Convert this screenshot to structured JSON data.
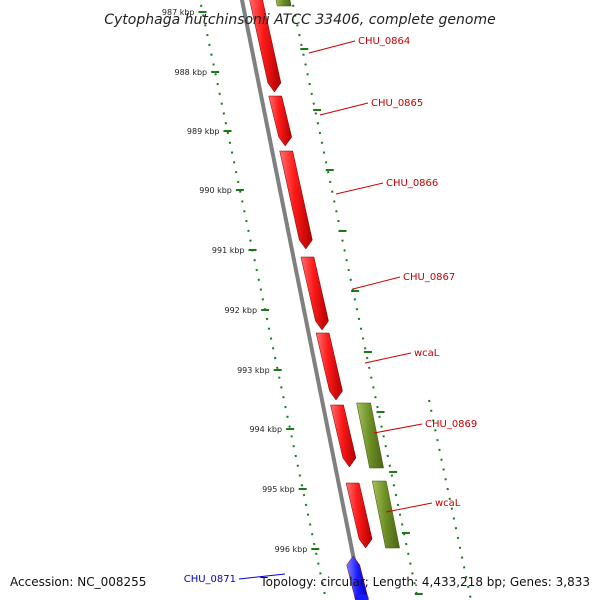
{
  "title": "Cytophaga hutchinsonii ATCC 33406, complete genome",
  "footer": {
    "accession": "Accession: NC_008255",
    "topology": "Topology: circular; Length: 4,433,218 bp; Genes: 3,833"
  },
  "ticks": [
    {
      "label": "987 kbp",
      "faded": true
    },
    {
      "label": "988 kbp"
    },
    {
      "label": "989 kbp"
    },
    {
      "label": "990 kbp"
    },
    {
      "label": "991 kbp"
    },
    {
      "label": "992 kbp"
    },
    {
      "label": "993 kbp"
    },
    {
      "label": "994 kbp"
    },
    {
      "label": "995 kbp"
    },
    {
      "label": "996 kbp"
    }
  ],
  "genes": [
    {
      "name": "CHU_0864",
      "strand": "reverse",
      "category": "cds",
      "color": "#e00000"
    },
    {
      "name": "CHU_0865",
      "strand": "reverse",
      "category": "cds",
      "color": "#e00000"
    },
    {
      "name": "CHU_0866",
      "strand": "reverse",
      "category": "cds",
      "color": "#e00000"
    },
    {
      "name": "CHU_0867",
      "strand": "reverse",
      "category": "cds",
      "color": "#e00000"
    },
    {
      "name": "wcaL",
      "strand": "reverse",
      "category": "cds",
      "color": "#e00000"
    },
    {
      "name": "CHU_0869",
      "strand": "reverse",
      "category": "cds",
      "color": "#e00000"
    },
    {
      "name": "wcaL",
      "strand": "reverse",
      "category": "cds",
      "color": "#e00000"
    },
    {
      "name": "CHU_0871",
      "strand": "forward",
      "category": "blue",
      "color": "#1a1aff"
    }
  ],
  "colors": {
    "backbone": "#808080",
    "ticks": "#1a7a1a",
    "gene_label": "#cc0000",
    "forward_label": "#0000cc",
    "olive_track": "#6b8e23",
    "forward_feature": "#1a1aff"
  }
}
